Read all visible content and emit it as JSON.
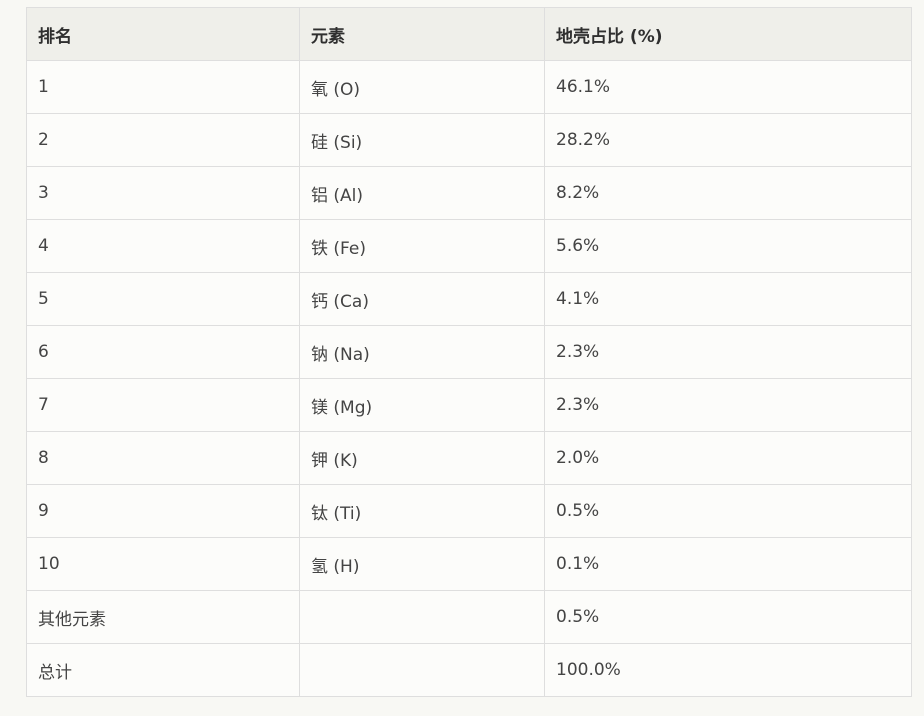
{
  "table": {
    "headers": [
      "排名",
      "元素",
      "地壳占比 (%)"
    ],
    "rows": [
      [
        "1",
        "氧 (O)",
        "46.1%"
      ],
      [
        "2",
        "硅 (Si)",
        "28.2%"
      ],
      [
        "3",
        "铝 (Al)",
        "8.2%"
      ],
      [
        "4",
        "铁 (Fe)",
        "5.6%"
      ],
      [
        "5",
        "钙 (Ca)",
        "4.1%"
      ],
      [
        "6",
        "钠 (Na)",
        "2.3%"
      ],
      [
        "7",
        "镁 (Mg)",
        "2.3%"
      ],
      [
        "8",
        "钾 (K)",
        "2.0%"
      ],
      [
        "9",
        "钛 (Ti)",
        "0.5%"
      ],
      [
        "10",
        "氢 (H)",
        "0.1%"
      ],
      [
        "其他元素",
        "",
        "0.5%"
      ],
      [
        "总计",
        "",
        "100.0%"
      ]
    ]
  }
}
